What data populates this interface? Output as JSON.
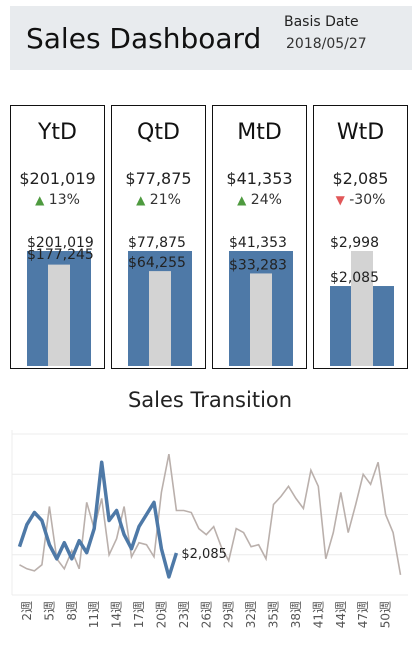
{
  "header": {
    "title": "Sales Dashboard",
    "basis_label": "Basis Date",
    "basis_date": "2018/05/27"
  },
  "cards": [
    {
      "period": "YtD",
      "value": "$201,019",
      "direction": "up",
      "change": "13%",
      "current_label": "$201,019",
      "previous_label": "$177,245",
      "current": 201019,
      "previous": 177245
    },
    {
      "period": "QtD",
      "value": "$77,875",
      "direction": "up",
      "change": "21%",
      "current_label": "$77,875",
      "previous_label": "$64,255",
      "current": 77875,
      "previous": 64255
    },
    {
      "period": "MtD",
      "value": "$41,353",
      "direction": "up",
      "change": "24%",
      "current_label": "$41,353",
      "previous_label": "$33,283",
      "current": 41353,
      "previous": 33283
    },
    {
      "period": "WtD",
      "value": "$2,085",
      "direction": "down",
      "change": "-30%",
      "current_label": "$2,085",
      "previous_label": "$2,998",
      "current": 2085,
      "previous": 2998
    }
  ],
  "colors": {
    "current_bar": "#4e79a7",
    "previous_bar": "#d3d3d3",
    "current_line": "#4e79a7",
    "previous_line": "#bab0ac",
    "up": "#4e9a3f",
    "down": "#e15759"
  },
  "chart_data": {
    "type": "line",
    "title": "Sales Transition",
    "x_tick_labels": [
      "2週",
      "5週",
      "8週",
      "11週",
      "14週",
      "17週",
      "20週",
      "23週",
      "26週",
      "29週",
      "32週",
      "35週",
      "38週",
      "41週",
      "44週",
      "47週",
      "50週"
    ],
    "x_ticks": [
      2,
      5,
      8,
      11,
      14,
      17,
      20,
      23,
      26,
      29,
      32,
      35,
      38,
      41,
      44,
      47,
      50
    ],
    "xlim": [
      0,
      53
    ],
    "ylim": [
      0,
      8200
    ],
    "grid": true,
    "end_label": "$2,085",
    "series": [
      {
        "role": "current",
        "x": [
          1,
          2,
          3,
          4,
          5,
          6,
          7,
          8,
          9,
          10,
          11,
          12,
          13,
          14,
          15,
          16,
          17,
          18,
          19,
          20,
          21,
          22
        ],
        "values": [
          2400,
          3500,
          4100,
          3700,
          2500,
          1800,
          2600,
          1800,
          2700,
          2100,
          3300,
          6600,
          3700,
          4200,
          3000,
          2300,
          3400,
          4000,
          4600,
          2300,
          900,
          2085
        ]
      },
      {
        "role": "previous",
        "x": [
          1,
          2,
          3,
          4,
          5,
          6,
          7,
          8,
          9,
          10,
          11,
          12,
          13,
          14,
          15,
          16,
          17,
          18,
          19,
          20,
          21,
          22,
          23,
          24,
          25,
          26,
          27,
          28,
          29,
          30,
          31,
          32,
          33,
          34,
          35,
          36,
          37,
          38,
          39,
          40,
          41,
          42,
          43,
          44,
          45,
          46,
          47,
          48,
          49,
          50,
          51,
          52
        ],
        "values": [
          1500,
          1300,
          1200,
          1500,
          4400,
          1800,
          1300,
          2200,
          1300,
          4600,
          3300,
          4800,
          2000,
          2800,
          4400,
          1900,
          2600,
          2500,
          1900,
          5100,
          7000,
          4200,
          4200,
          4100,
          3300,
          3000,
          3400,
          2400,
          1700,
          3300,
          3100,
          2400,
          2500,
          1800,
          4500,
          4900,
          5400,
          4800,
          4300,
          6200,
          5400,
          1800,
          3100,
          5100,
          3100,
          4500,
          6000,
          5500,
          6600,
          4000,
          3100,
          1000
        ]
      }
    ]
  }
}
